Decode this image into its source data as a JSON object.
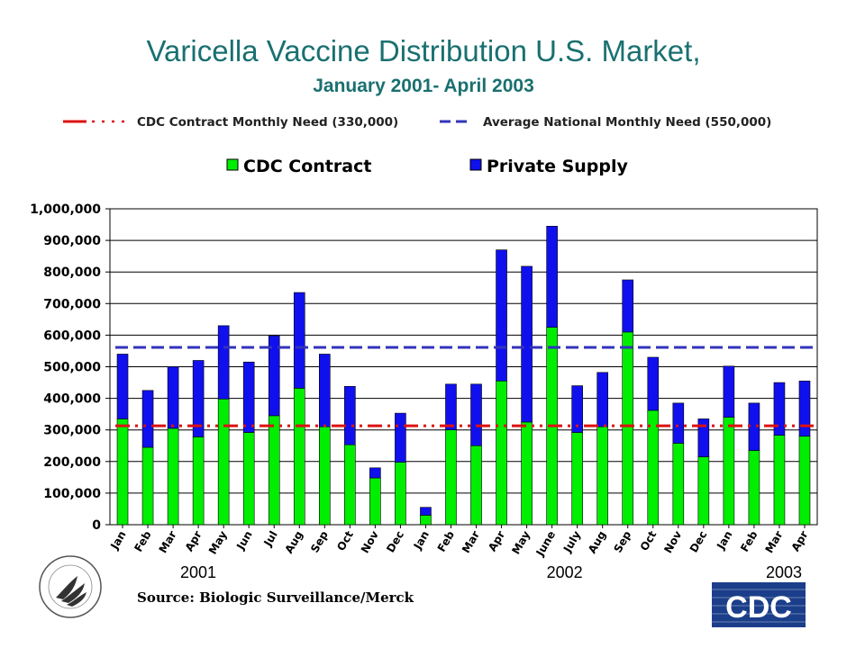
{
  "title": "Varicella Vaccine Distribution U.S. Market,",
  "subtitle": "January 2001- April 2003",
  "source": "Source: Biologic Surveillance/Merck",
  "logos": {
    "hhs_seal": "hhs-seal-icon",
    "cdc": "CDC"
  },
  "colors": {
    "title": "#1a7070",
    "cdc_contract": "#00ee00",
    "private_supply": "#1010ee",
    "cdc_need_line": "#dd1111",
    "national_need_line": "#3333bb",
    "plot_bg": "#ffffff"
  },
  "chart_data": {
    "type": "bar",
    "stacked": true,
    "categories": [
      "Jan",
      "Feb",
      "Mar",
      "Apr",
      "May",
      "Jun",
      "Jul",
      "Aug",
      "Sep",
      "Oct",
      "Nov",
      "Dec",
      "Jan",
      "Feb",
      "Mar",
      "Apr",
      "May",
      "June",
      "July",
      "Aug",
      "Sep",
      "Oct",
      "Nov",
      "Dec",
      "Jan",
      "Feb",
      "Mar",
      "Apr"
    ],
    "year_labels": [
      {
        "label": "2001",
        "start": 0,
        "end": 11
      },
      {
        "label": "2002",
        "start": 12,
        "end": 23
      },
      {
        "label": "2003",
        "start": 24,
        "end": 27
      }
    ],
    "series": [
      {
        "name": "CDC Contract",
        "values": [
          335000,
          245000,
          305000,
          278000,
          398000,
          292000,
          345000,
          432000,
          310000,
          253000,
          148000,
          198000,
          30000,
          300000,
          250000,
          455000,
          325000,
          625000,
          292000,
          310000,
          610000,
          362000,
          258000,
          215000,
          340000,
          235000,
          283000,
          280000
        ]
      },
      {
        "name": "Private Supply",
        "values": [
          205000,
          180000,
          195000,
          242000,
          232000,
          223000,
          253000,
          303000,
          230000,
          185000,
          32000,
          155000,
          25000,
          145000,
          195000,
          415000,
          493000,
          320000,
          148000,
          172000,
          165000,
          168000,
          127000,
          120000,
          162000,
          150000,
          167000,
          175000
        ]
      }
    ],
    "reference_lines": [
      {
        "label": "CDC Contract Monthly Need (330,000)",
        "value": 330000,
        "style": "dash-dot",
        "color": "#dd1111"
      },
      {
        "label": "Average National Monthly Need (550,000)",
        "value": 550000,
        "style": "dashed",
        "color": "#3333bb"
      }
    ],
    "ylim": [
      0,
      1000000
    ],
    "yticks": [
      "0",
      "100,000",
      "200,000",
      "300,000",
      "400,000",
      "500,000",
      "600,000",
      "700,000",
      "800,000",
      "900,000",
      "1,000,000"
    ],
    "grid": true,
    "legend_position": "top"
  }
}
